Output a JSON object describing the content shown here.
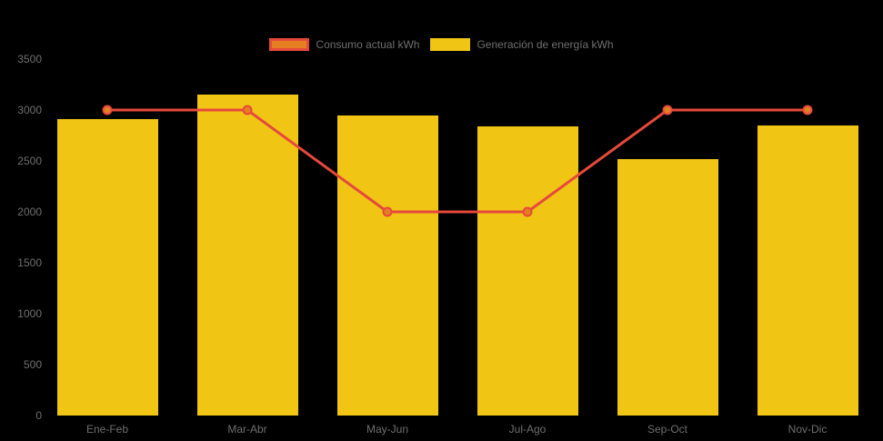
{
  "colors": {
    "background": "#000000",
    "axis_text": "#6f6f6f",
    "bar_fill": "#F0C514",
    "line_stroke": "#E6493C",
    "marker_fill": "#E67E22"
  },
  "chart_data": {
    "type": "bar+line",
    "title": "",
    "xlabel": "",
    "ylabel": "",
    "categories": [
      "Ene-Feb",
      "Mar-Abr",
      "May-Jun",
      "Jul-Ago",
      "Sep-Oct",
      "Nov-Dic"
    ],
    "series": [
      {
        "name": "Consumo actual kWh",
        "type": "line",
        "color": "#E6493C",
        "marker_fill": "#E67E22",
        "values": [
          3000,
          3000,
          2000,
          2000,
          3000,
          3000
        ]
      },
      {
        "name": "Generación de energía kWh",
        "type": "bar",
        "color": "#F0C514",
        "values": [
          2910,
          3150,
          2950,
          2840,
          2520,
          2850
        ]
      }
    ],
    "ylim": [
      0,
      3500
    ],
    "ytick_step": 500,
    "yticks": [
      "0",
      "500",
      "1000",
      "1500",
      "2000",
      "2500",
      "3000",
      "3500"
    ],
    "grid": false,
    "legend_position": "top"
  }
}
